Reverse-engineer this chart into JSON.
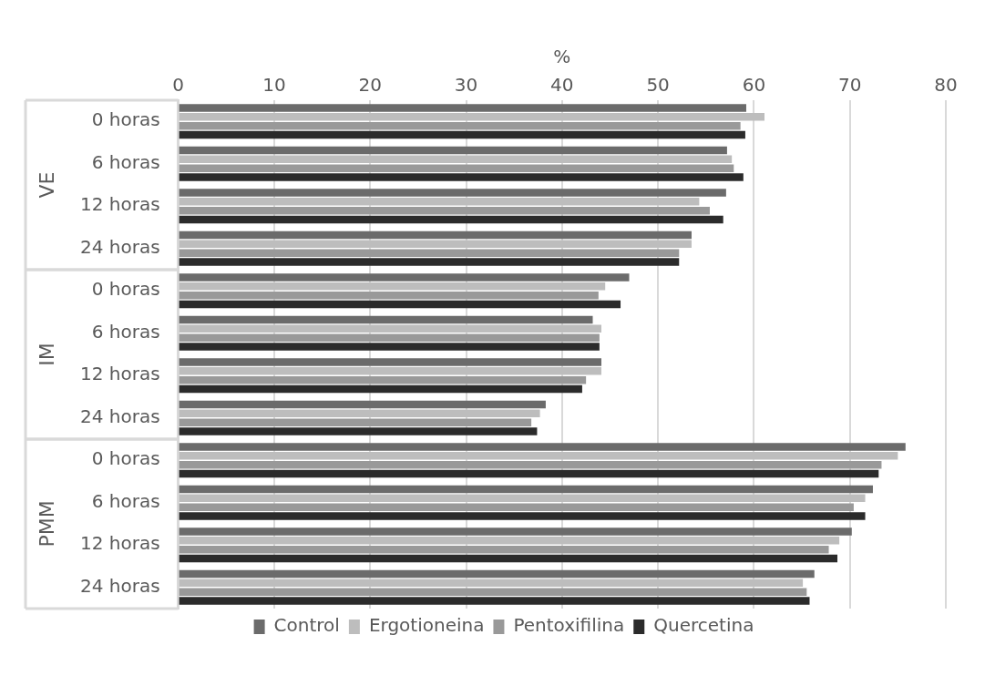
{
  "chart_data": {
    "type": "bar",
    "orientation": "horizontal",
    "xlabel": "%",
    "categories": [
      "0 horas",
      "6 horas",
      "12 horas",
      "24 horas",
      "0 horas",
      "6 horas",
      "12 horas",
      "24 horas",
      "0 horas",
      "6 horas",
      "12 horas",
      "24 horas"
    ],
    "series": [
      {
        "name": "Control",
        "color": "#6b6b6b",
        "values": [
          59.2,
          57.2,
          57.1,
          53.5,
          47.0,
          43.2,
          44.1,
          38.3,
          75.8,
          72.4,
          70.2,
          66.3
        ]
      },
      {
        "name": "Ergotioneina",
        "color": "#bdbdbd",
        "values": [
          61.1,
          57.7,
          54.3,
          53.5,
          44.5,
          44.1,
          44.1,
          37.7,
          75.0,
          71.6,
          68.9,
          65.1
        ]
      },
      {
        "name": "Pentoxifilina",
        "color": "#999999",
        "values": [
          58.6,
          57.9,
          55.4,
          52.2,
          43.8,
          43.9,
          42.5,
          36.8,
          73.3,
          70.4,
          67.8,
          65.5
        ]
      },
      {
        "name": "Quercetina",
        "color": "#2b2b2b",
        "values": [
          59.1,
          58.9,
          56.8,
          52.2,
          46.1,
          43.9,
          42.1,
          37.4,
          73.0,
          71.6,
          68.7,
          65.8
        ]
      }
    ],
    "annotations": [
      "VE",
      "IM",
      "PMM"
    ],
    "xlim": [
      0,
      80
    ],
    "xticks": [
      0,
      10,
      20,
      30,
      40,
      50,
      60,
      70,
      80
    ],
    "grid": "x",
    "legend": "bottom"
  }
}
